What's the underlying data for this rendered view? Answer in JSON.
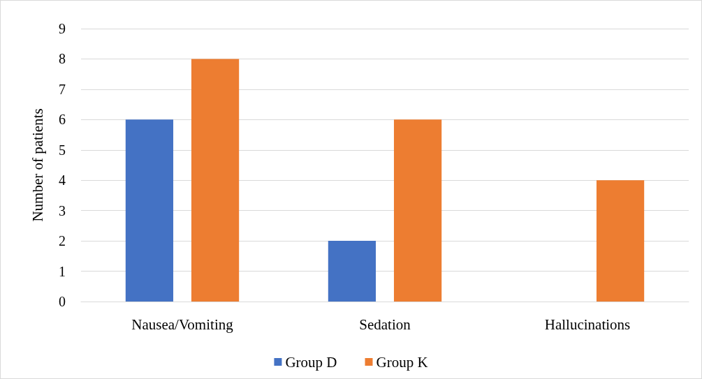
{
  "chart_data": {
    "type": "bar",
    "ylabel": "Number of patients",
    "categories": [
      "Nausea/Vomiting",
      "Sedation",
      "Hallucinations"
    ],
    "series": [
      {
        "name": "Group D",
        "color": "#4472c4",
        "values": [
          6,
          2,
          0
        ]
      },
      {
        "name": "Group K",
        "color": "#ed7d31",
        "values": [
          8,
          6,
          4
        ]
      }
    ],
    "ylim": [
      0,
      9
    ],
    "yticks": [
      0,
      1,
      2,
      3,
      4,
      5,
      6,
      7,
      8,
      9
    ],
    "grid": "y",
    "legend": "bottom"
  }
}
